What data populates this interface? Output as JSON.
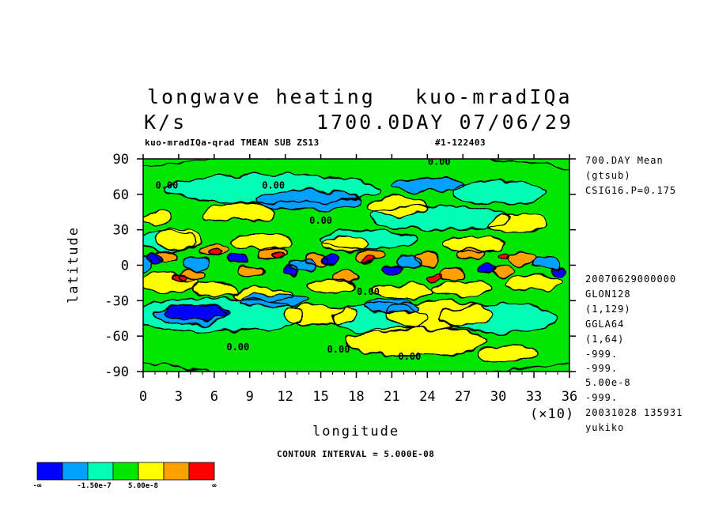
{
  "header": {
    "title_left": "longwave heating",
    "title_right": "kuo-mradIQa",
    "units": "K/s",
    "timestamp": "1700.0DAY 07/06/29",
    "subtitle": "kuo-mradIQa-qrad TMEAN SUB ZS13",
    "file_id": "#1-122403"
  },
  "side_info": {
    "lines_top": [
      "700.DAY Mean",
      "(gtsub)",
      "CSIG16.P=0.175"
    ],
    "lines_bottom": [
      "20070629000000",
      "GLON128",
      "(1,129)",
      "GGLA64",
      "(1,64)",
      "-999.",
      "-999.",
      "5.00e-8",
      "-999.",
      "20031028 135931",
      "yukiko"
    ]
  },
  "footer": {
    "contour_interval": "CONTOUR INTERVAL = 5.000E-08"
  },
  "colorbar": {
    "colors": [
      "#0000ff",
      "#00a0ff",
      "#00ffb4",
      "#00e600",
      "#ffff00",
      "#ffa000",
      "#ff0000"
    ],
    "labels": [
      "-∞",
      "-1.50e-7",
      "5.00e-8",
      "∞"
    ]
  },
  "chart_data": {
    "type": "heatmap",
    "xlabel": "longitude",
    "ylabel": "latitude",
    "x_multiplier": "(×10)",
    "xlim": [
      0,
      36
    ],
    "ylim": [
      -90,
      90
    ],
    "xticks": [
      "0",
      "3",
      "6",
      "9",
      "12",
      "15",
      "18",
      "21",
      "24",
      "27",
      "30",
      "33",
      "36"
    ],
    "yticks": [
      "90",
      "60",
      "30",
      "0",
      "-30",
      "-60",
      "-90"
    ],
    "contour_labels": [
      {
        "text": "0.00",
        "lon": 250,
        "lat": 85
      },
      {
        "text": "0.00",
        "lon": 20,
        "lat": 65
      },
      {
        "text": "0.00",
        "lon": 110,
        "lat": 65
      },
      {
        "text": "0.00",
        "lon": 150,
        "lat": 35
      },
      {
        "text": "0.00",
        "lon": 190,
        "lat": -25
      },
      {
        "text": "0.00",
        "lon": 80,
        "lat": -72
      },
      {
        "text": "0.00",
        "lon": 165,
        "lat": -74
      },
      {
        "text": "0.00",
        "lon": 225,
        "lat": -80
      }
    ],
    "regions": [
      {
        "level": 3,
        "lon": 180,
        "lat": 0,
        "rx": 360,
        "ry": 95
      },
      {
        "level": 2,
        "lon": 110,
        "lat": 65,
        "rx": 90,
        "ry": 12
      },
      {
        "level": 2,
        "lon": 300,
        "lat": 62,
        "rx": 40,
        "ry": 10
      },
      {
        "level": 2,
        "lon": 250,
        "lat": 40,
        "rx": 60,
        "ry": 10
      },
      {
        "level": 2,
        "lon": 60,
        "lat": -42,
        "rx": 75,
        "ry": 14
      },
      {
        "level": 2,
        "lon": 200,
        "lat": -45,
        "rx": 40,
        "ry": 12
      },
      {
        "level": 2,
        "lon": 300,
        "lat": -45,
        "rx": 50,
        "ry": 12
      },
      {
        "level": 2,
        "lon": 20,
        "lat": 20,
        "rx": 25,
        "ry": 8
      },
      {
        "level": 2,
        "lon": 190,
        "lat": 22,
        "rx": 40,
        "ry": 8
      },
      {
        "level": 1,
        "lon": 40,
        "lat": -42,
        "rx": 30,
        "ry": 8
      },
      {
        "level": 4,
        "lon": 12,
        "lat": 40,
        "rx": 12,
        "ry": 6
      },
      {
        "level": 4,
        "lon": 80,
        "lat": 45,
        "rx": 30,
        "ry": 8
      },
      {
        "level": 4,
        "lon": 215,
        "lat": 50,
        "rx": 25,
        "ry": 8
      },
      {
        "level": 4,
        "lon": 315,
        "lat": 35,
        "rx": 25,
        "ry": 8
      },
      {
        "level": 4,
        "lon": 150,
        "lat": -42,
        "rx": 30,
        "ry": 8
      },
      {
        "level": 4,
        "lon": 230,
        "lat": -65,
        "rx": 60,
        "ry": 12
      },
      {
        "level": 4,
        "lon": 310,
        "lat": -75,
        "rx": 25,
        "ry": 6
      },
      {
        "level": 4,
        "lon": 250,
        "lat": -42,
        "rx": 45,
        "ry": 12
      },
      {
        "level": 4,
        "lon": 30,
        "lat": 22,
        "rx": 20,
        "ry": 8
      },
      {
        "level": 4,
        "lon": 100,
        "lat": 20,
        "rx": 25,
        "ry": 7
      },
      {
        "level": 4,
        "lon": 170,
        "lat": 18,
        "rx": 20,
        "ry": 6
      },
      {
        "level": 4,
        "lon": 280,
        "lat": 18,
        "rx": 25,
        "ry": 6
      },
      {
        "level": 4,
        "lon": 20,
        "lat": -15,
        "rx": 25,
        "ry": 8
      },
      {
        "level": 4,
        "lon": 60,
        "lat": -20,
        "rx": 20,
        "ry": 6
      },
      {
        "level": 4,
        "lon": 100,
        "lat": -25,
        "rx": 25,
        "ry": 6
      },
      {
        "level": 4,
        "lon": 160,
        "lat": -18,
        "rx": 20,
        "ry": 6
      },
      {
        "level": 4,
        "lon": 220,
        "lat": -22,
        "rx": 25,
        "ry": 6
      },
      {
        "level": 4,
        "lon": 270,
        "lat": -20,
        "rx": 25,
        "ry": 6
      },
      {
        "level": 4,
        "lon": 330,
        "lat": -15,
        "rx": 25,
        "ry": 6
      },
      {
        "level": 5,
        "lon": 20,
        "lat": 8,
        "rx": 10,
        "ry": 5
      },
      {
        "level": 5,
        "lon": 60,
        "lat": 12,
        "rx": 12,
        "ry": 5
      },
      {
        "level": 5,
        "lon": 110,
        "lat": 10,
        "rx": 12,
        "ry": 5
      },
      {
        "level": 5,
        "lon": 145,
        "lat": 5,
        "rx": 10,
        "ry": 5
      },
      {
        "level": 5,
        "lon": 190,
        "lat": 8,
        "rx": 12,
        "ry": 5
      },
      {
        "level": 5,
        "lon": 240,
        "lat": 5,
        "rx": 10,
        "ry": 5
      },
      {
        "level": 5,
        "lon": 275,
        "lat": 10,
        "rx": 12,
        "ry": 5
      },
      {
        "level": 5,
        "lon": 320,
        "lat": 6,
        "rx": 12,
        "ry": 5
      },
      {
        "level": 5,
        "lon": 40,
        "lat": -8,
        "rx": 12,
        "ry": 5
      },
      {
        "level": 5,
        "lon": 90,
        "lat": -5,
        "rx": 10,
        "ry": 5
      },
      {
        "level": 5,
        "lon": 170,
        "lat": -10,
        "rx": 10,
        "ry": 4
      },
      {
        "level": 5,
        "lon": 260,
        "lat": -8,
        "rx": 12,
        "ry": 5
      },
      {
        "level": 5,
        "lon": 305,
        "lat": -5,
        "rx": 10,
        "ry": 4
      },
      {
        "level": 6,
        "lon": 60,
        "lat": 10,
        "rx": 6,
        "ry": 3
      },
      {
        "level": 6,
        "lon": 30,
        "lat": -10,
        "rx": 6,
        "ry": 3
      },
      {
        "level": 6,
        "lon": 115,
        "lat": 8,
        "rx": 5,
        "ry": 3
      },
      {
        "level": 6,
        "lon": 245,
        "lat": -10,
        "rx": 6,
        "ry": 3
      },
      {
        "level": 6,
        "lon": 305,
        "lat": 8,
        "rx": 5,
        "ry": 3
      },
      {
        "level": 6,
        "lon": 190,
        "lat": 5,
        "rx": 5,
        "ry": 3
      },
      {
        "level": 0,
        "lon": 45,
        "lat": -40,
        "rx": 28,
        "ry": 6
      },
      {
        "level": 0,
        "lon": 10,
        "lat": 5,
        "rx": 6,
        "ry": 4
      },
      {
        "level": 0,
        "lon": 80,
        "lat": 5,
        "rx": 8,
        "ry": 4
      },
      {
        "level": 0,
        "lon": 125,
        "lat": -5,
        "rx": 7,
        "ry": 4
      },
      {
        "level": 0,
        "lon": 160,
        "lat": 5,
        "rx": 8,
        "ry": 4
      },
      {
        "level": 0,
        "lon": 210,
        "lat": -3,
        "rx": 8,
        "ry": 4
      },
      {
        "level": 0,
        "lon": 290,
        "lat": -3,
        "rx": 7,
        "ry": 4
      },
      {
        "level": 0,
        "lon": 350,
        "lat": -5,
        "rx": 6,
        "ry": 4
      },
      {
        "level": 1,
        "lon": 140,
        "lat": 55,
        "rx": 45,
        "ry": 8
      },
      {
        "level": 1,
        "lon": 240,
        "lat": 68,
        "rx": 30,
        "ry": 6
      },
      {
        "level": 1,
        "lon": 110,
        "lat": -30,
        "rx": 30,
        "ry": 6
      },
      {
        "level": 1,
        "lon": 210,
        "lat": -35,
        "rx": 25,
        "ry": 6
      },
      {
        "level": 1,
        "lon": 0,
        "lat": 0,
        "rx": 8,
        "ry": 6
      },
      {
        "level": 1,
        "lon": 45,
        "lat": 2,
        "rx": 10,
        "ry": 5
      },
      {
        "level": 1,
        "lon": 135,
        "lat": 0,
        "rx": 10,
        "ry": 5
      },
      {
        "level": 1,
        "lon": 225,
        "lat": 2,
        "rx": 10,
        "ry": 5
      },
      {
        "level": 1,
        "lon": 340,
        "lat": 2,
        "rx": 10,
        "ry": 5
      }
    ]
  }
}
